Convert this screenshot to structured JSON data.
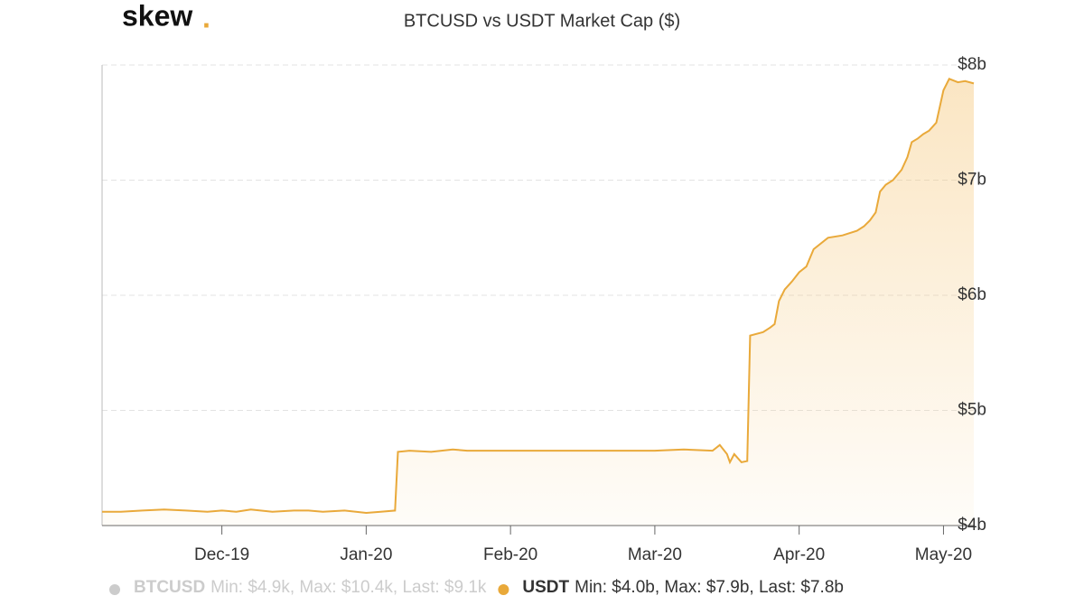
{
  "logo": {
    "word": "skew",
    "dot": "."
  },
  "chart_data": {
    "type": "area",
    "title": "BTCUSD vs USDT Market Cap ($)",
    "x": [
      0.17,
      0.3,
      0.45,
      0.6,
      0.75,
      0.9,
      1.0,
      1.1,
      1.2,
      1.35,
      1.5,
      1.6,
      1.7,
      1.85,
      2.0,
      2.1,
      2.2,
      2.22,
      2.3,
      2.45,
      2.6,
      2.7,
      2.8,
      3.0,
      3.2,
      3.4,
      3.6,
      3.8,
      4.0,
      4.2,
      4.4,
      4.45,
      4.5,
      4.52,
      4.55,
      4.6,
      4.64,
      4.66,
      4.75,
      4.8,
      4.83,
      4.86,
      4.9,
      4.95,
      5.0,
      5.05,
      5.1,
      5.2,
      5.3,
      5.4,
      5.45,
      5.49,
      5.53,
      5.56,
      5.6,
      5.65,
      5.71,
      5.75,
      5.78,
      5.82,
      5.86,
      5.9,
      5.95,
      6.0,
      6.04,
      6.1,
      6.15,
      6.21
    ],
    "series": [
      {
        "name": "USDT",
        "color": "#e9a93a",
        "values": [
          4.12,
          4.12,
          4.13,
          4.14,
          4.13,
          4.12,
          4.13,
          4.12,
          4.14,
          4.12,
          4.13,
          4.13,
          4.12,
          4.13,
          4.11,
          4.12,
          4.13,
          4.64,
          4.65,
          4.64,
          4.66,
          4.65,
          4.65,
          4.65,
          4.65,
          4.65,
          4.65,
          4.65,
          4.65,
          4.66,
          4.65,
          4.7,
          4.62,
          4.55,
          4.62,
          4.55,
          4.56,
          5.65,
          5.68,
          5.72,
          5.75,
          5.95,
          6.05,
          6.12,
          6.2,
          6.25,
          6.4,
          6.5,
          6.52,
          6.56,
          6.6,
          6.65,
          6.72,
          6.9,
          6.96,
          7.0,
          7.09,
          7.2,
          7.33,
          7.36,
          7.4,
          7.43,
          7.5,
          7.78,
          7.88,
          7.85,
          7.86,
          7.84
        ]
      }
    ],
    "xlim": [
      0.17,
      6.21
    ],
    "xticks": [
      {
        "value": 1,
        "label": "Dec-19"
      },
      {
        "value": 2,
        "label": "Jan-20"
      },
      {
        "value": 3,
        "label": "Feb-20"
      },
      {
        "value": 4,
        "label": "Mar-20"
      },
      {
        "value": 5,
        "label": "Apr-20"
      },
      {
        "value": 6,
        "label": "May-20"
      }
    ],
    "ylim": [
      4,
      8
    ],
    "yticks": [
      {
        "value": 4,
        "label": "$4b"
      },
      {
        "value": 5,
        "label": "$5b"
      },
      {
        "value": 6,
        "label": "$6b"
      },
      {
        "value": 7,
        "label": "$7b"
      },
      {
        "value": 8,
        "label": "$8b"
      }
    ],
    "grid": true,
    "legend": [
      {
        "name": "BTCUSD",
        "stats": "Min: $4.9k, Max: $10.4k, Last: $9.1k",
        "color": "#cccccc"
      },
      {
        "name": "USDT",
        "stats": "Min: $4.0b, Max: $7.9b, Last: $7.8b",
        "color": "#e9a93a"
      }
    ]
  }
}
